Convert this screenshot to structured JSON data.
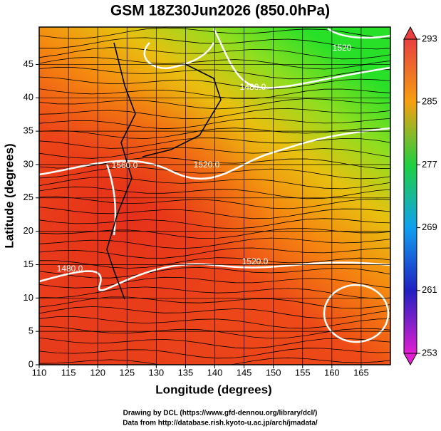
{
  "chart_data": {
    "type": "map",
    "title": "GSM 18Z30Jun2026 (850.0hPa)",
    "x_label": "Longitude (degrees)",
    "y_label": "Latitude  (degrees)",
    "xlim": [
      110,
      170
    ],
    "xticks": [
      110,
      115,
      120,
      125,
      130,
      135,
      140,
      145,
      150,
      155,
      160,
      165
    ],
    "ylim": [
      0,
      50.6
    ],
    "yticks": [
      0,
      5,
      10,
      15,
      20,
      25,
      30,
      35,
      40,
      45
    ],
    "grid": true,
    "colorbar": {
      "lim": [
        253,
        293
      ],
      "ticks": [
        253,
        261,
        269,
        277,
        285,
        293
      ]
    },
    "contour_labels": [
      "1560.0",
      "1520.0",
      "1480.0",
      "1520.0",
      "1480.0",
      "1520"
    ],
    "credits": [
      "Drawing by DCL (https://www.gfd-dennou.org/library/dcl/)",
      "Data from http://database.rish.kyoto-u.ac.jp/arch/jmadata/"
    ]
  }
}
